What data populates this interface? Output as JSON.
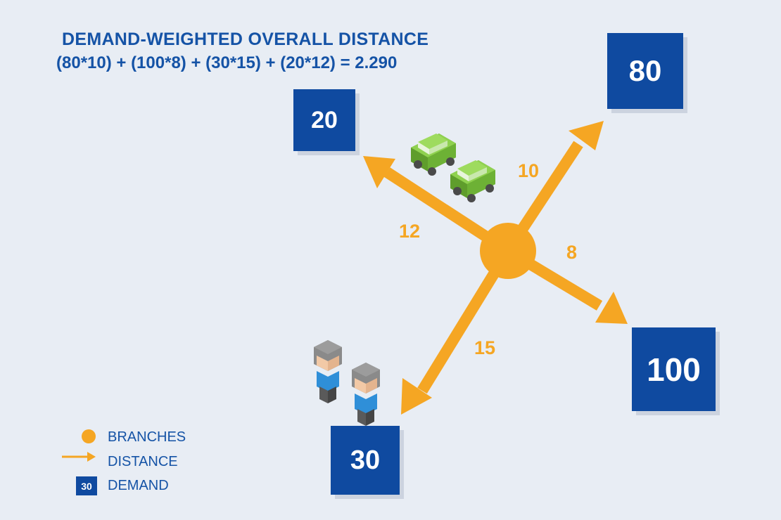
{
  "header": {
    "title": "DEMAND-WEIGHTED OVERALL DISTANCE",
    "formula": "(80*10) + (100*8) + (30*15) + (20*12) = 2.290"
  },
  "demand_points": [
    {
      "demand": "80",
      "distance": "10"
    },
    {
      "demand": "100",
      "distance": "8"
    },
    {
      "demand": "30",
      "distance": "15"
    },
    {
      "demand": "20",
      "distance": "12"
    }
  ],
  "legend": {
    "branches": "BRANCHES",
    "distance": "DISTANCE",
    "demand": "DEMAND",
    "demand_sample": "30"
  },
  "colors": {
    "accent_orange": "#f5a623",
    "demand_blue": "#0f4aa0",
    "text_blue": "#1553a6",
    "car_green": "#7cc242",
    "background": "#e8edf4"
  },
  "icons": [
    "branch-circle-icon",
    "car-icon",
    "person-icon",
    "arrow-icon"
  ]
}
